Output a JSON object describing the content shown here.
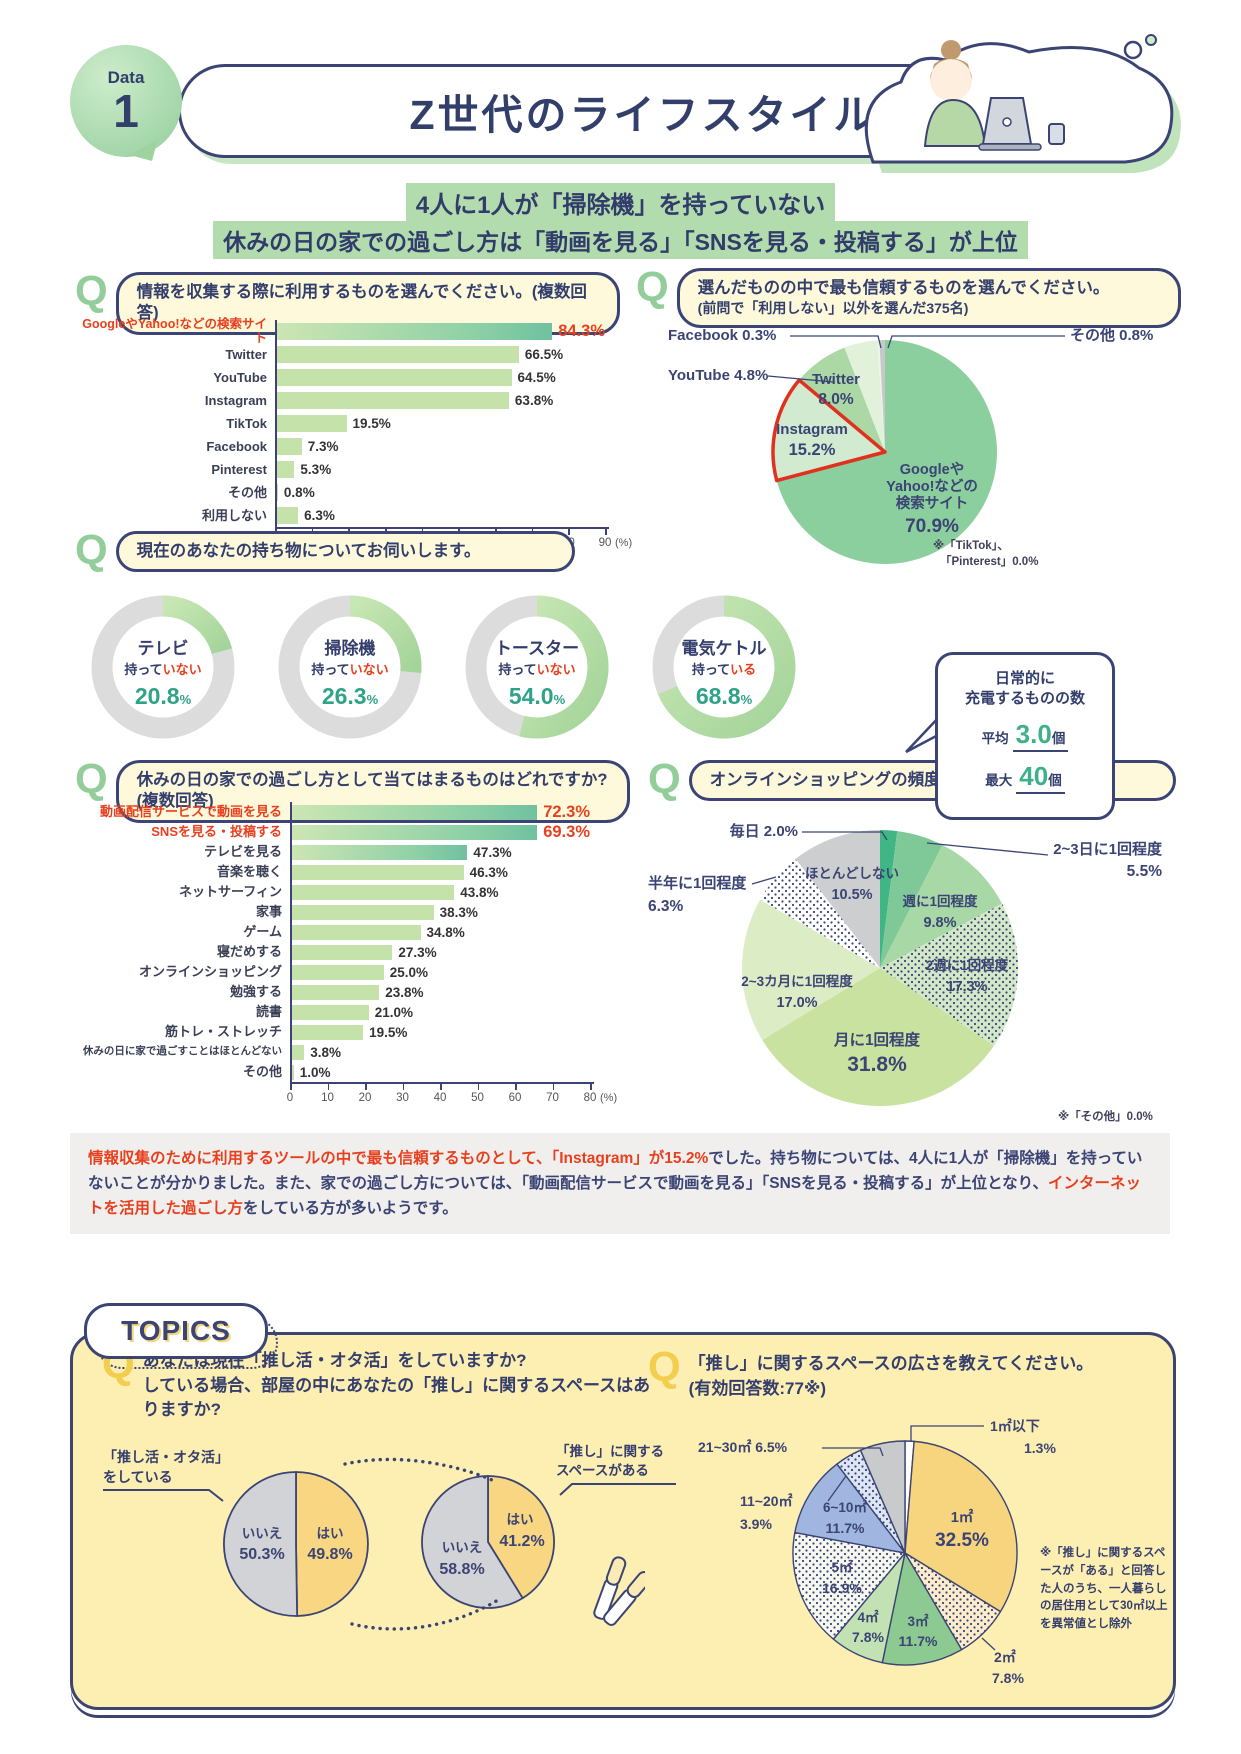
{
  "header": {
    "badge_label": "Data",
    "badge_number": "1",
    "title": "Z世代のライフスタイル"
  },
  "subtitles": [
    "4人に1人が「掃除機」を持っていない",
    "休みの日の家での過ごし方は「動画を見る」「SNSを見る・投稿する」が上位"
  ],
  "q_mark": "Q",
  "questions": {
    "q1": "情報を収集する際に利用するものを選んでください。(複数回答)",
    "q2_line1": "選んだものの中で最も信頼するものを選んでください。",
    "q2_line2": "(前問で「利用しない」以外を選んだ375名)",
    "q3": "現在のあなたの持ち物についてお伺いします。",
    "q4": "休みの日の家での過ごし方として当てはまるものはどれですか?(複数回答)",
    "q5": "オンラインショッピングの頻度はどのくらいですか?",
    "q6_line1": "あなたは現在「推し活・オタ活」をしていますか?",
    "q6_line2": "している場合、部屋の中にあなたの「推し」に関するスペースはありますか?",
    "q7_line1": "「推し」に関するスペースの広さを教えてください。",
    "q7_line2": "(有効回答数:77※)"
  },
  "charging": {
    "title_line1": "日常的に",
    "title_line2": "充電するものの数",
    "stats": [
      {
        "label": "平均",
        "value": "3.0",
        "unit": "個"
      },
      {
        "label": "最大",
        "value": "40",
        "unit": "個"
      }
    ]
  },
  "summary": {
    "segments": [
      {
        "text": "情報収集のために利用するツールの中で最も信頼するものとして、「Instagram」が15.2%",
        "red": true
      },
      {
        "text": "でした。持ち物については、4人に1人が「掃除機」を持っていないことが分かりました。また、家での過ごし方については、「動画配信サービスで動画を見る」「SNSを見る・投稿する」が上位となり、",
        "red": false
      },
      {
        "text": "インターネットを活用した過ごし方",
        "red": true
      },
      {
        "text": "をしている方が多いようです。",
        "red": false
      }
    ]
  },
  "topics": {
    "label": "TOPICS",
    "pieA_caption_line1": "「推し活・オタ活」",
    "pieA_caption_line2": "をしている",
    "pieB_caption_line1": "「推し」に関する",
    "pieB_caption_line2": "スペースがある",
    "note": "※「推し」に関するスペースが「ある」と回答した人のうち、一人暮らしの居住用として30㎡以上を異常値とし除外"
  },
  "chart_data": [
    {
      "id": "info_sources",
      "type": "bar",
      "question": "情報を収集する際に利用するものを選んでください。(複数回答)",
      "categories": [
        "GoogleやYahoo!などの検索サイト",
        "Twitter",
        "YouTube",
        "Instagram",
        "TikTok",
        "Facebook",
        "Pinterest",
        "その他",
        "利用しない"
      ],
      "values": [
        84.3,
        66.5,
        64.5,
        63.8,
        19.5,
        7.3,
        5.3,
        0.8,
        6.3
      ],
      "xlim": [
        0,
        90
      ],
      "x_ticks": [
        0,
        10,
        20,
        30,
        40,
        50,
        60,
        70,
        80,
        90
      ],
      "x_unit": "(%)",
      "highlight_indices": [
        0
      ]
    },
    {
      "id": "most_trusted",
      "type": "pie",
      "question": "選んだものの中で最も信頼するものを選んでください。(前問で「利用しない」以外を選んだ375名)",
      "labels": [
        "GoogleやYahoo!などの検索サイト",
        "Instagram",
        "Twitter",
        "YouTube",
        "Facebook",
        "その他"
      ],
      "values": [
        70.9,
        15.2,
        8.0,
        4.8,
        0.3,
        0.8
      ],
      "note": "※「TikTok」、「Pinterest」0.0%",
      "highlight": "Instagram"
    },
    {
      "id": "belongings",
      "type": "donut",
      "question": "現在のあなたの持ち物についてお伺いします。",
      "items": [
        {
          "name": "テレビ",
          "status_prefix": "持って",
          "status_suffix": "いない",
          "value": 20.8
        },
        {
          "name": "掃除機",
          "status_prefix": "持って",
          "status_suffix": "いない",
          "value": 26.3
        },
        {
          "name": "トースター",
          "status_prefix": "持って",
          "status_suffix": "いない",
          "value": 54.0
        },
        {
          "name": "電気ケトル",
          "status_prefix": "持って",
          "status_suffix": "いる",
          "value": 68.8
        }
      ]
    },
    {
      "id": "holiday_activities",
      "type": "bar",
      "question": "休みの日の家での過ごし方として当てはまるものはどれですか?(複数回答)",
      "categories": [
        "動画配信サービスで動画を見る",
        "SNSを見る・投稿する",
        "テレビを見る",
        "音楽を聴く",
        "ネットサーフィン",
        "家事",
        "ゲーム",
        "寝だめする",
        "オンラインショッピング",
        "勉強する",
        "読書",
        "筋トレ・ストレッチ",
        "休みの日に家で過ごすことはほとんどない",
        "その他"
      ],
      "values": [
        72.3,
        69.3,
        47.3,
        46.3,
        43.8,
        38.3,
        34.8,
        27.3,
        25.0,
        23.8,
        21.0,
        19.5,
        3.8,
        1.0
      ],
      "xlim": [
        0,
        80
      ],
      "x_ticks": [
        0,
        10,
        20,
        30,
        40,
        50,
        60,
        70,
        80
      ],
      "x_unit": "(%)",
      "highlight_indices": [
        0,
        1
      ]
    },
    {
      "id": "shopping_frequency",
      "type": "pie",
      "question": "オンラインショッピングの頻度はどのくらいですか?",
      "labels": [
        "毎日",
        "2~3日に1回程度",
        "週に1回程度",
        "2週に1回程度",
        "月に1回程度",
        "2~3カ月に1回程度",
        "半年に1回程度",
        "ほとんどしない"
      ],
      "values": [
        2.0,
        5.5,
        9.8,
        17.3,
        31.8,
        17.0,
        6.3,
        10.5
      ],
      "note": "※「その他」0.0%"
    },
    {
      "id": "oshi_doing",
      "type": "pie",
      "labels": [
        "はい",
        "いいえ"
      ],
      "values": [
        49.8,
        50.3
      ],
      "caption": "「推し活・オタ活」をしている"
    },
    {
      "id": "oshi_space",
      "type": "pie",
      "labels": [
        "はい",
        "いいえ"
      ],
      "values": [
        41.2,
        58.8
      ],
      "caption": "「推し」に関するスペースがある"
    },
    {
      "id": "space_size",
      "type": "pie",
      "question": "「推し」に関するスペースの広さを教えてください。(有効回答数:77※)",
      "labels": [
        "1㎡以下",
        "1㎡",
        "2㎡",
        "3㎡",
        "4㎡",
        "5㎡",
        "6~10㎡",
        "11~20㎡",
        "21~30㎡"
      ],
      "values": [
        1.3,
        32.5,
        7.8,
        11.7,
        7.8,
        16.9,
        11.7,
        3.9,
        6.5
      ],
      "note": "※「推し」に関するスペースが「ある」と回答した人のうち、一人暮らしの居住用として30㎡以上を異常値とし除外"
    }
  ]
}
